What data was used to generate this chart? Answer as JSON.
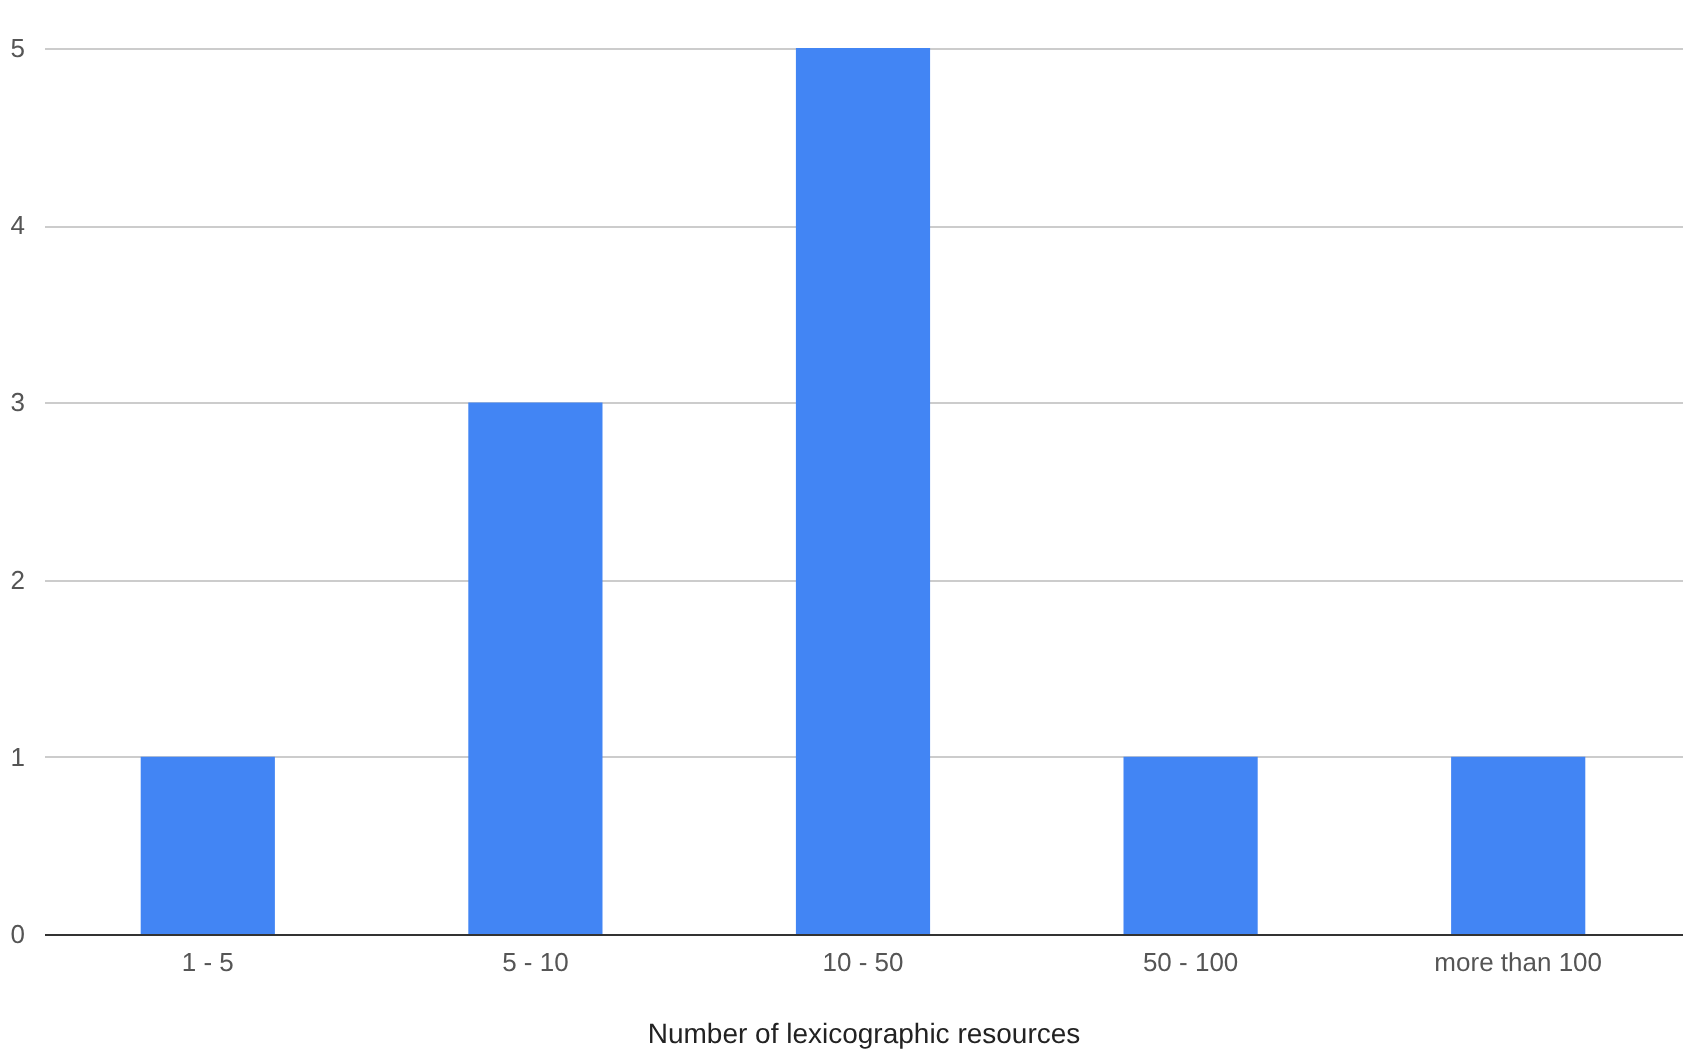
{
  "chart_data": {
    "type": "bar",
    "xlabel": "Number of lexicographic resources",
    "categories": [
      "1 - 5",
      "5 - 10",
      "10 - 50",
      "50 - 100",
      "more than 100"
    ],
    "values": [
      1,
      3,
      5,
      1,
      1
    ],
    "color": "#4285f4",
    "ylim": [
      0,
      5
    ],
    "yticks": [
      0,
      1,
      2,
      3,
      4,
      5
    ],
    "grid": "y"
  }
}
